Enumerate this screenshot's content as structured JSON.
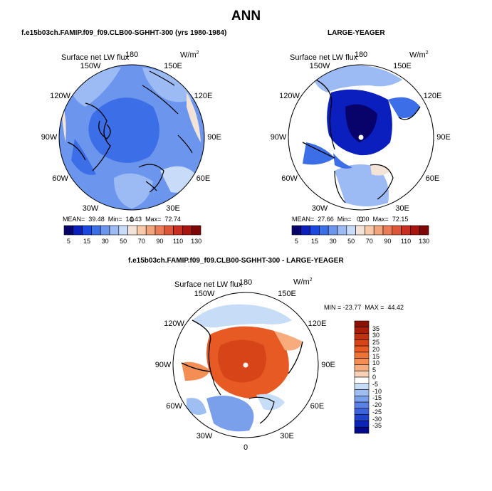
{
  "figure": {
    "title": "ANN",
    "variable": "Surface net LW flux",
    "units": "W/m",
    "units_exp": "2"
  },
  "lon_labels": [
    "180",
    "150E",
    "120E",
    "90E",
    "60E",
    "30E",
    "0",
    "30W",
    "60W",
    "90W",
    "120W",
    "150W"
  ],
  "chart_data": [
    {
      "type": "heatmap",
      "projection": "north-polar-stereographic",
      "title": "f.e15b03ch.FAMIP.f09_f09.CLB00-SGHHT-300 (yrs 1980-1984)",
      "variable": "Surface net LW flux",
      "units": "W/m2",
      "stats": {
        "mean": "39.48",
        "min": "14.43",
        "max": "72.74",
        "text": "MEAN=  39.48  Min=  14.43  Max=  72.74"
      },
      "colorbar": {
        "labels": [
          "5",
          "15",
          "30",
          "50",
          "70",
          "90",
          "110",
          "130"
        ],
        "colors": [
          "#08036b",
          "#0a1fbd",
          "#1c48e0",
          "#3c6ee8",
          "#6c95ee",
          "#9cbaf3",
          "#c8dbf8",
          "#f4e4d8",
          "#f7c9a8",
          "#f2a47c",
          "#eb7c58",
          "#de5538",
          "#c92f20",
          "#a8140f",
          "#7d0606"
        ]
      },
      "approx_values": {
        "arctic_ocean_and_north_america": 30,
        "north_atlantic": 50,
        "north_pacific": 50
      }
    },
    {
      "type": "heatmap",
      "projection": "north-polar-stereographic",
      "title": "LARGE-YEAGER",
      "variable": "Surface net LW flux",
      "units": "W/m2",
      "stats": {
        "mean": "27.66",
        "min": "0.00",
        "max": "72.15",
        "text": "MEAN=  27.66  Min=   0.00  Max=  72.15"
      },
      "colorbar": {
        "labels": [
          "5",
          "15",
          "30",
          "50",
          "70",
          "90",
          "110",
          "130"
        ],
        "colors": [
          "#08036b",
          "#0a1fbd",
          "#1c48e0",
          "#3c6ee8",
          "#6c95ee",
          "#9cbaf3",
          "#c8dbf8",
          "#f4e4d8",
          "#f7c9a8",
          "#f2a47c",
          "#eb7c58",
          "#de5538",
          "#c92f20",
          "#a8140f",
          "#7d0606"
        ]
      },
      "approx_values": {
        "central_arctic": 5,
        "marginal_seas": 15,
        "north_atlantic": 50,
        "land": "missing"
      }
    },
    {
      "type": "heatmap",
      "projection": "north-polar-stereographic",
      "title": "f.e15b03ch.FAMIP.f09_f09.CLB00-SGHHT-300 - LARGE-YEAGER",
      "variable": "Surface net LW flux",
      "units": "W/m2",
      "stats": {
        "min": "-23.77",
        "max": "44.42",
        "text": "MIN = -23.77  MAX =  44.42"
      },
      "colorbar": {
        "orientation": "vertical",
        "labels": [
          "35",
          "30",
          "25",
          "20",
          "15",
          "10",
          "5",
          "0",
          "-5",
          "-10",
          "-15",
          "-20",
          "-25",
          "-30",
          "-35"
        ],
        "colors": [
          "#8c1204",
          "#a81e08",
          "#c2300f",
          "#d64418",
          "#e75a24",
          "#ef7335",
          "#f48e54",
          "#f8ac7e",
          "#fcd2b6",
          "#ffffff",
          "#c7dcf7",
          "#9fbef2",
          "#7aa0ec",
          "#5a82e6",
          "#3c63dc",
          "#1f42ce",
          "#0d25b6",
          "#050a8a"
        ]
      },
      "approx_values": {
        "central_arctic": 25,
        "north_atlantic": -5,
        "north_pacific": -5
      }
    }
  ]
}
